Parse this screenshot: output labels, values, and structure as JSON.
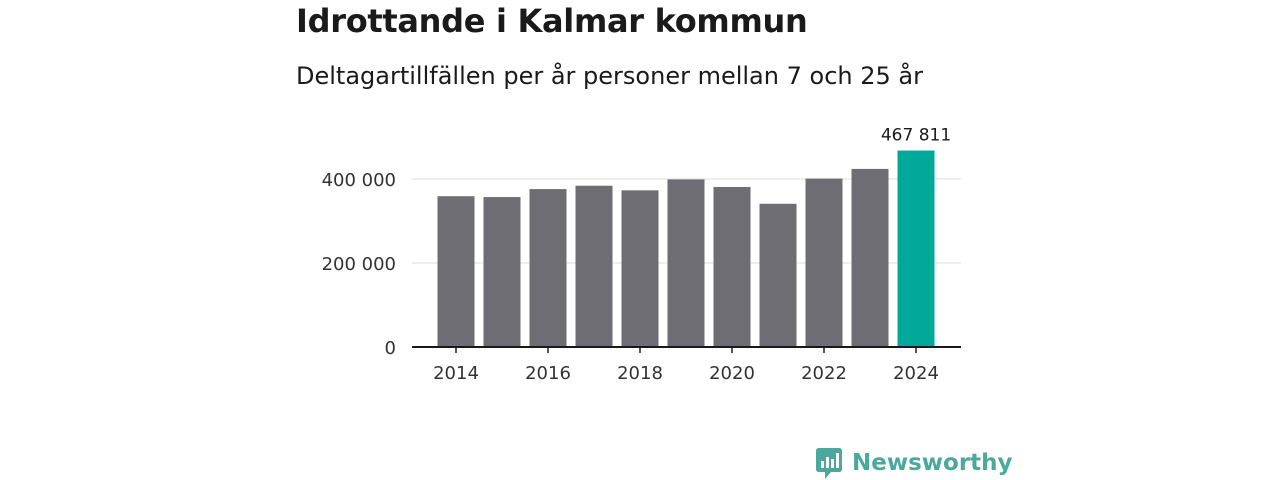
{
  "chart_data": {
    "type": "bar",
    "title": "Idrottande i Kalmar kommun",
    "subtitle": "Deltagartillfällen per år personer mellan 7 och 25 år",
    "xlabel": "",
    "ylabel": "",
    "categories": [
      "2014",
      "2015",
      "2016",
      "2017",
      "2018",
      "2019",
      "2020",
      "2021",
      "2022",
      "2023",
      "2024"
    ],
    "values": [
      359000,
      357000,
      376000,
      384000,
      373000,
      399000,
      381000,
      341000,
      401000,
      424000,
      467811
    ],
    "highlight_index": 10,
    "highlight_label": "467 811",
    "ylim": [
      0,
      470000
    ],
    "y_ticks": [
      {
        "value": 0,
        "label": "0"
      },
      {
        "value": 200000,
        "label": "200 000"
      },
      {
        "value": 400000,
        "label": "400 000"
      }
    ],
    "x_ticks": [
      {
        "index": 0,
        "label": "2014"
      },
      {
        "index": 2,
        "label": "2016"
      },
      {
        "index": 4,
        "label": "2018"
      },
      {
        "index": 6,
        "label": "2020"
      },
      {
        "index": 8,
        "label": "2022"
      },
      {
        "index": 10,
        "label": "2024"
      }
    ],
    "grid": true,
    "colors": {
      "bar": "#6e6d73",
      "highlight": "#00a99a",
      "grid": "#dcdcdc",
      "axis": "#1a1a1a"
    }
  },
  "brand": {
    "name": "Newsworthy",
    "color": "#4aa89c"
  }
}
